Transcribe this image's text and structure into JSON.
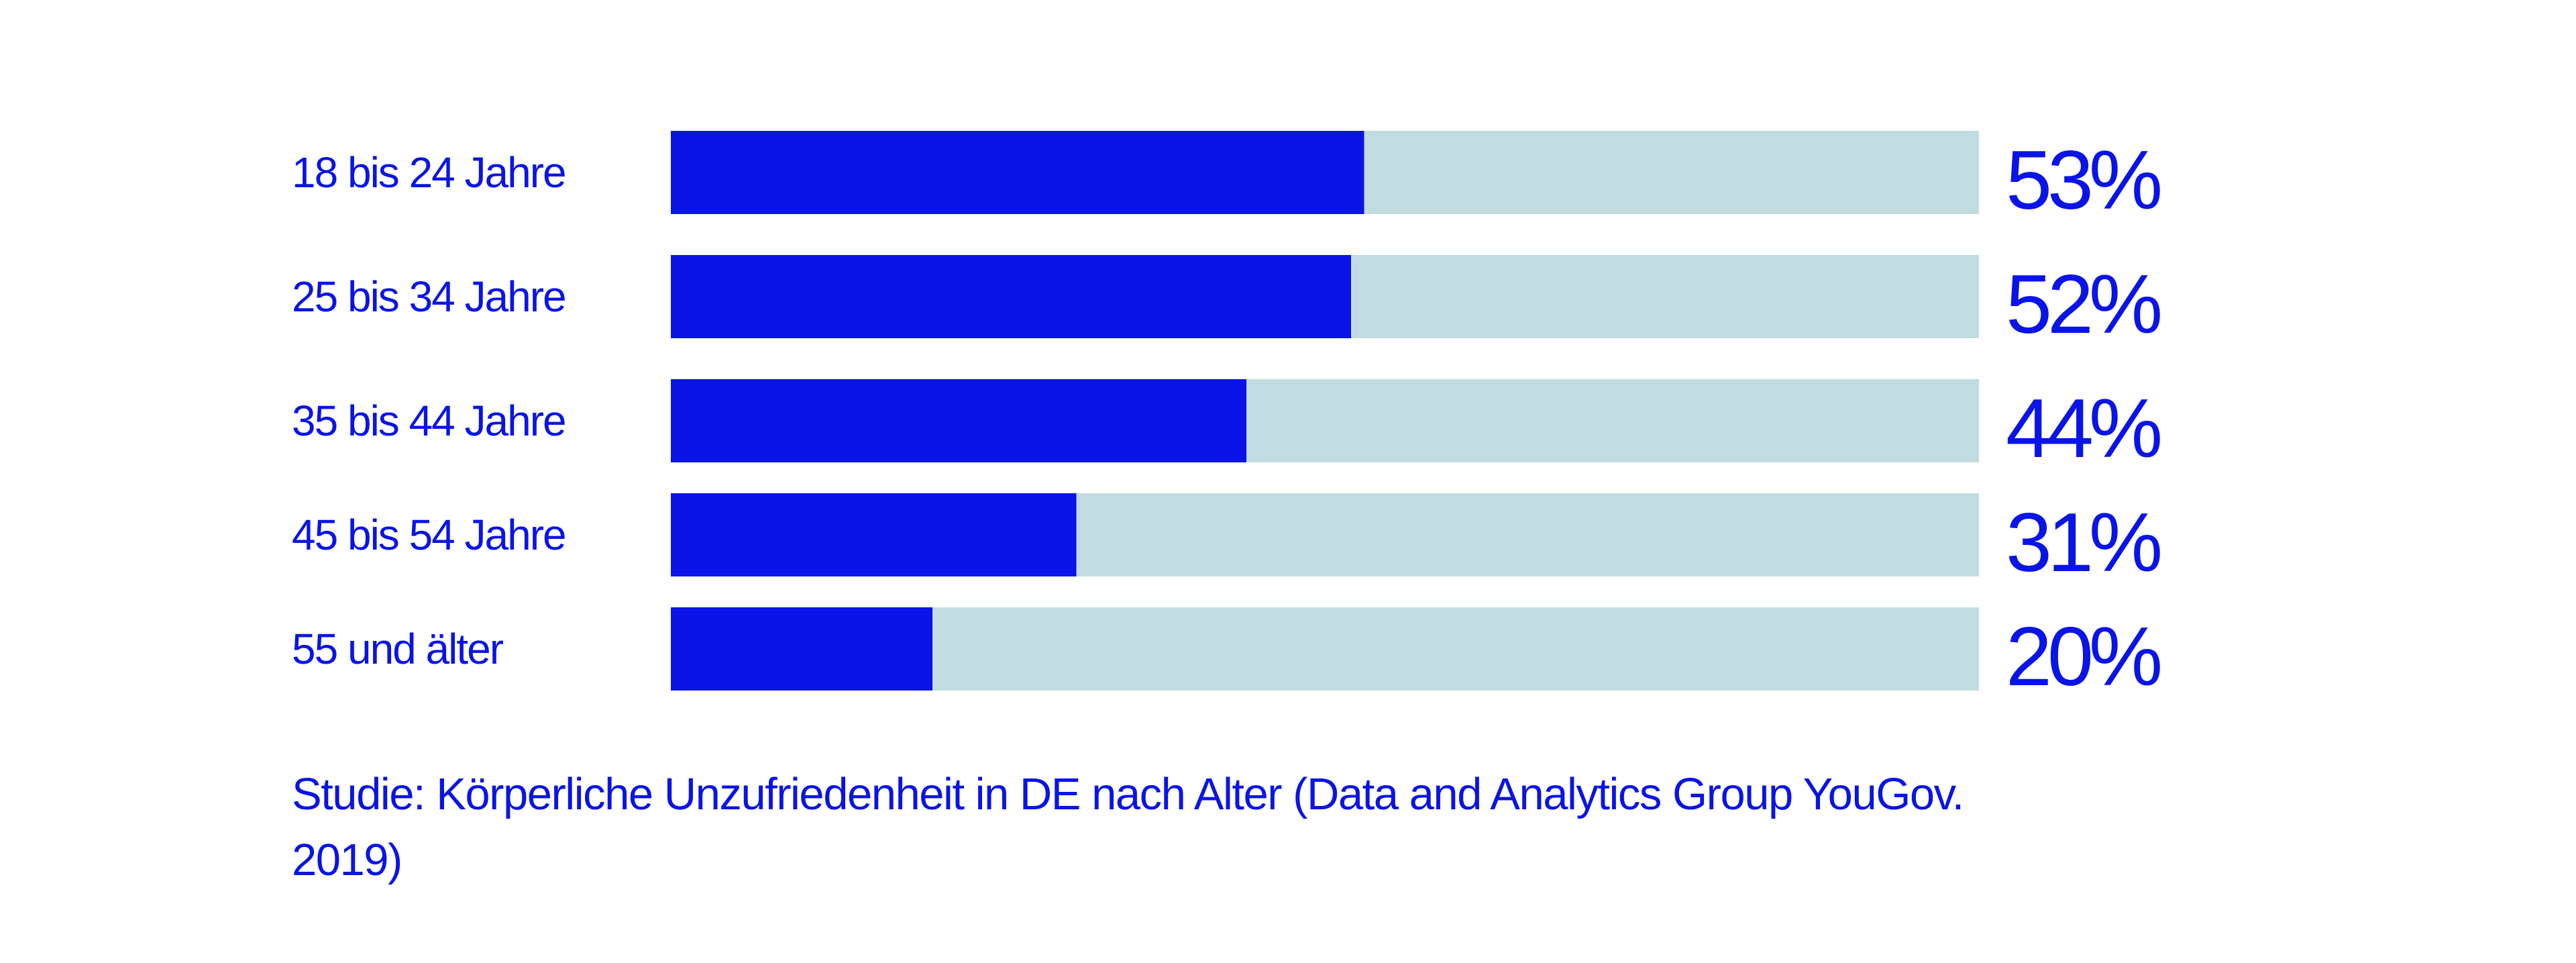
{
  "colors": {
    "accent": "#0a14e6",
    "track": "#c0dce1",
    "background": "#ffffff"
  },
  "chart_data": {
    "type": "bar",
    "orientation": "horizontal",
    "categories": [
      "18 bis 24 Jahre",
      "25 bis 34 Jahre",
      "35 bis 44 Jahre",
      "45 bis 54 Jahre",
      "55 und älter"
    ],
    "values": [
      53,
      52,
      44,
      31,
      20
    ],
    "value_labels": [
      "53%",
      "52%",
      "44%",
      "31%",
      "20%"
    ],
    "xlim": [
      0,
      100
    ],
    "unit": "%",
    "grid": false,
    "legend": "none"
  },
  "caption": "Studie: Körperliche Unzufriedenheit in DE nach Alter (Data and Analytics Group YouGov. 2019)"
}
